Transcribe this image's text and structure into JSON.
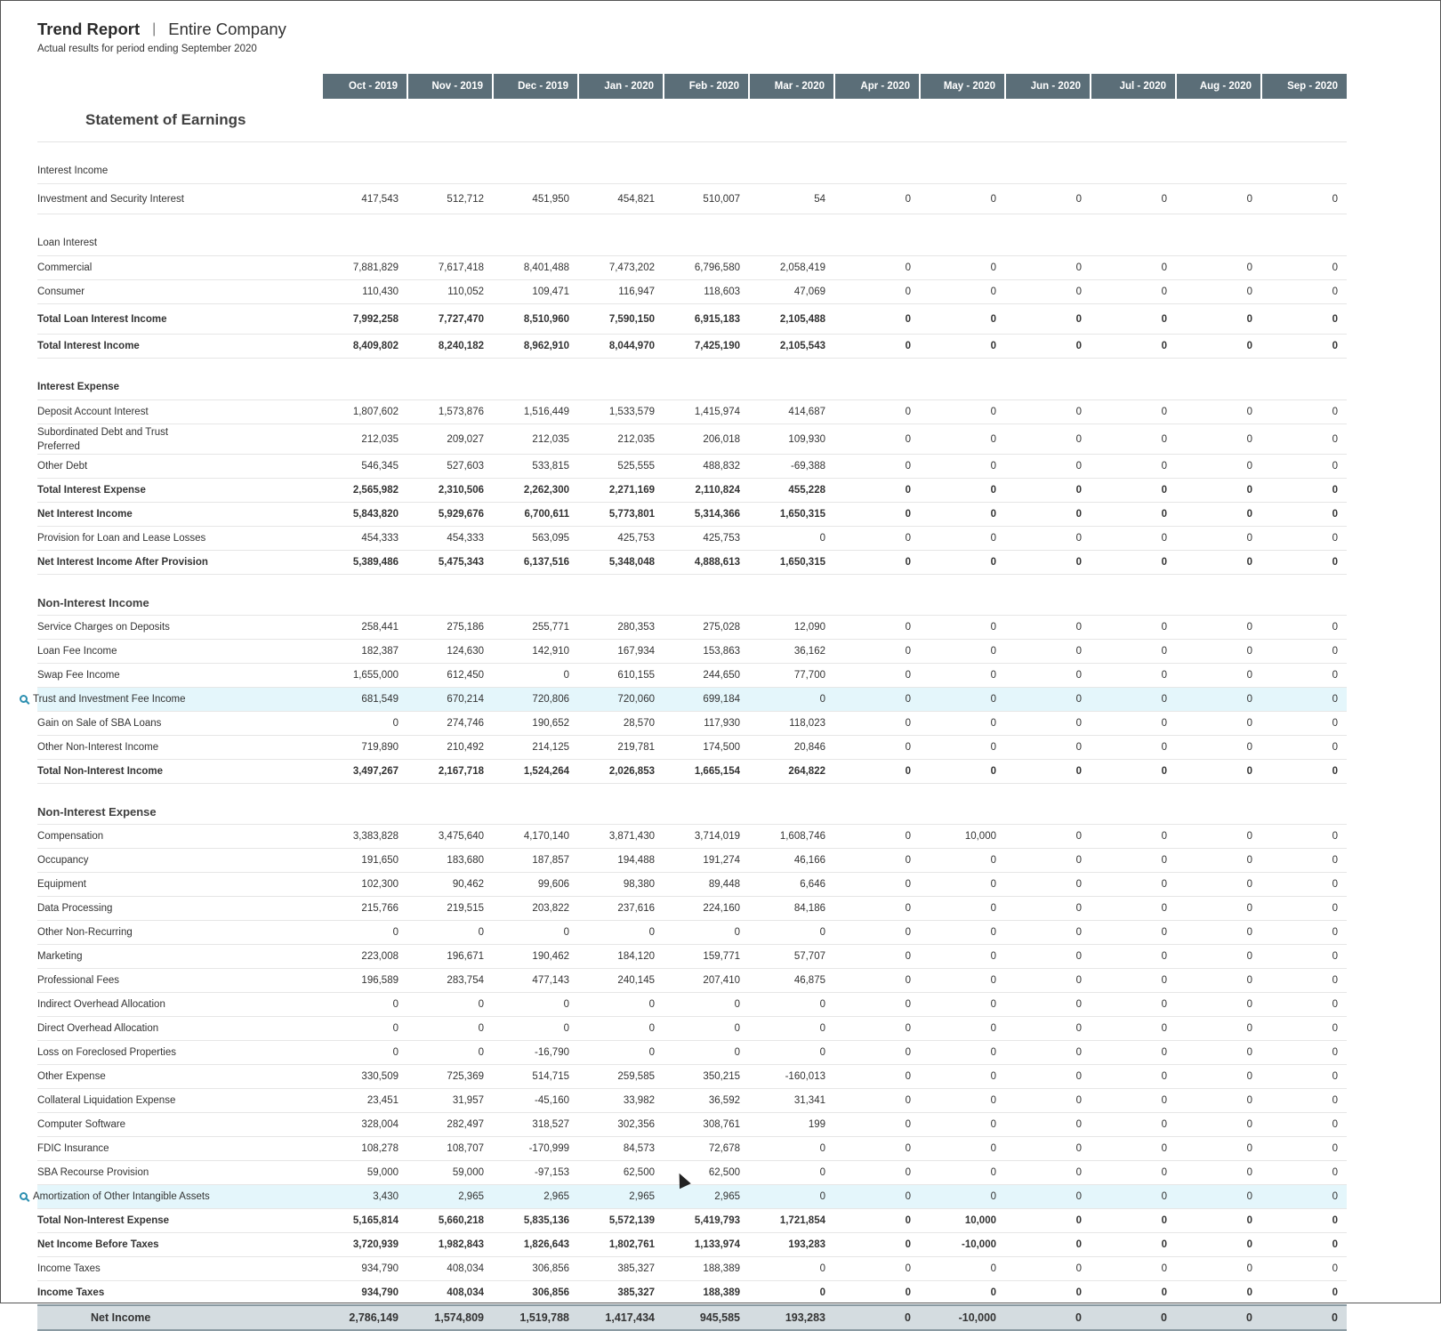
{
  "header": {
    "title": "Trend Report",
    "separator": "|",
    "entity": "Entire Company",
    "subtitle": "Actual results for period ending September 2020"
  },
  "columns": [
    "Oct - 2019",
    "Nov - 2019",
    "Dec - 2019",
    "Jan - 2020",
    "Feb - 2020",
    "Mar - 2020",
    "Apr - 2020",
    "May - 2020",
    "Jun - 2020",
    "Jul - 2020",
    "Aug - 2020",
    "Sep - 2020"
  ],
  "section_title": "Statement of Earnings",
  "rows": [
    {
      "label": "Interest Income",
      "indent": 4,
      "style": "gap",
      "values": []
    },
    {
      "label": "Investment and Security Interest",
      "indent": 5,
      "style": "tall",
      "values": [
        "417,543",
        "512,712",
        "451,950",
        "454,821",
        "510,007",
        "54",
        "0",
        "0",
        "0",
        "0",
        "0",
        "0"
      ]
    },
    {
      "label": "Loan Interest",
      "indent": 5,
      "style": "gap",
      "values": []
    },
    {
      "label": "Commercial",
      "indent": 6,
      "values": [
        "7,881,829",
        "7,617,418",
        "8,401,488",
        "7,473,202",
        "6,796,580",
        "2,058,419",
        "0",
        "0",
        "0",
        "0",
        "0",
        "0"
      ]
    },
    {
      "label": "Consumer",
      "indent": 6,
      "values": [
        "110,430",
        "110,052",
        "109,471",
        "116,947",
        "118,603",
        "47,069",
        "0",
        "0",
        "0",
        "0",
        "0",
        "0"
      ]
    },
    {
      "label": "Total Loan Interest Income",
      "indent": 6,
      "style": "tall bold",
      "values": [
        "7,992,258",
        "7,727,470",
        "8,510,960",
        "7,590,150",
        "6,915,183",
        "2,105,488",
        "0",
        "0",
        "0",
        "0",
        "0",
        "0"
      ]
    },
    {
      "label": "Total Interest Income",
      "indent": 5,
      "style": "bold",
      "values": [
        "8,409,802",
        "8,240,182",
        "8,962,910",
        "8,044,970",
        "7,425,190",
        "2,105,543",
        "0",
        "0",
        "0",
        "0",
        "0",
        "0"
      ]
    },
    {
      "label": "Interest Expense",
      "indent": 4,
      "style": "gap bold",
      "values": []
    },
    {
      "label": "Deposit Account Interest",
      "indent": 5,
      "values": [
        "1,807,602",
        "1,573,876",
        "1,516,449",
        "1,533,579",
        "1,415,974",
        "414,687",
        "0",
        "0",
        "0",
        "0",
        "0",
        "0"
      ]
    },
    {
      "label": "Subordinated Debt and Trust Preferred",
      "indent": 5,
      "style": "tall",
      "values": [
        "212,035",
        "209,027",
        "212,035",
        "212,035",
        "206,018",
        "109,930",
        "0",
        "0",
        "0",
        "0",
        "0",
        "0"
      ]
    },
    {
      "label": "Other Debt",
      "indent": 5,
      "values": [
        "546,345",
        "527,603",
        "533,815",
        "525,555",
        "488,832",
        "-69,388",
        "0",
        "0",
        "0",
        "0",
        "0",
        "0"
      ]
    },
    {
      "label": "Total Interest Expense",
      "indent": 5,
      "style": "bold",
      "values": [
        "2,565,982",
        "2,310,506",
        "2,262,300",
        "2,271,169",
        "2,110,824",
        "455,228",
        "0",
        "0",
        "0",
        "0",
        "0",
        "0"
      ]
    },
    {
      "label": "Net Interest Income",
      "indent": 4,
      "style": "bold",
      "values": [
        "5,843,820",
        "5,929,676",
        "6,700,611",
        "5,773,801",
        "5,314,366",
        "1,650,315",
        "0",
        "0",
        "0",
        "0",
        "0",
        "0"
      ]
    },
    {
      "label": "Provision for Loan and Lease Losses",
      "indent": 3,
      "values": [
        "454,333",
        "454,333",
        "563,095",
        "425,753",
        "425,753",
        "0",
        "0",
        "0",
        "0",
        "0",
        "0",
        "0"
      ]
    },
    {
      "label": "Net Interest Income After Provision",
      "indent": 3,
      "style": "bold",
      "values": [
        "5,389,486",
        "5,475,343",
        "6,137,516",
        "5,348,048",
        "4,888,613",
        "1,650,315",
        "0",
        "0",
        "0",
        "0",
        "0",
        "0"
      ]
    },
    {
      "label": "Non-Interest Income",
      "indent": 2,
      "style": "group",
      "values": []
    },
    {
      "label": "Service Charges on Deposits",
      "indent": 3,
      "values": [
        "258,441",
        "275,186",
        "255,771",
        "280,353",
        "275,028",
        "12,090",
        "0",
        "0",
        "0",
        "0",
        "0",
        "0"
      ]
    },
    {
      "label": "Loan Fee Income",
      "indent": 3,
      "values": [
        "182,387",
        "124,630",
        "142,910",
        "167,934",
        "153,863",
        "36,162",
        "0",
        "0",
        "0",
        "0",
        "0",
        "0"
      ]
    },
    {
      "label": "Swap Fee Income",
      "indent": 3,
      "values": [
        "1,655,000",
        "612,450",
        "0",
        "610,155",
        "244,650",
        "77,700",
        "0",
        "0",
        "0",
        "0",
        "0",
        "0"
      ]
    },
    {
      "label": "Trust and Investment Fee Income",
      "indent": 3,
      "style": "hl",
      "icon": "search-icon",
      "values": [
        "681,549",
        "670,214",
        "720,806",
        "720,060",
        "699,184",
        "0",
        "0",
        "0",
        "0",
        "0",
        "0",
        "0"
      ]
    },
    {
      "label": "Gain on Sale of SBA Loans",
      "indent": 3,
      "values": [
        "0",
        "274,746",
        "190,652",
        "28,570",
        "117,930",
        "118,023",
        "0",
        "0",
        "0",
        "0",
        "0",
        "0"
      ]
    },
    {
      "label": "Other Non-Interest Income",
      "indent": 3,
      "values": [
        "719,890",
        "210,492",
        "214,125",
        "219,781",
        "174,500",
        "20,846",
        "0",
        "0",
        "0",
        "0",
        "0",
        "0"
      ]
    },
    {
      "label": "Total Non-Interest Income",
      "indent": 3,
      "style": "bold",
      "values": [
        "3,497,267",
        "2,167,718",
        "1,524,264",
        "2,026,853",
        "1,665,154",
        "264,822",
        "0",
        "0",
        "0",
        "0",
        "0",
        "0"
      ]
    },
    {
      "label": "Non-Interest Expense",
      "indent": 2,
      "style": "group",
      "values": []
    },
    {
      "label": "Compensation",
      "indent": 3,
      "values": [
        "3,383,828",
        "3,475,640",
        "4,170,140",
        "3,871,430",
        "3,714,019",
        "1,608,746",
        "0",
        "10,000",
        "0",
        "0",
        "0",
        "0"
      ]
    },
    {
      "label": "Occupancy",
      "indent": 3,
      "values": [
        "191,650",
        "183,680",
        "187,857",
        "194,488",
        "191,274",
        "46,166",
        "0",
        "0",
        "0",
        "0",
        "0",
        "0"
      ]
    },
    {
      "label": "Equipment",
      "indent": 3,
      "values": [
        "102,300",
        "90,462",
        "99,606",
        "98,380",
        "89,448",
        "6,646",
        "0",
        "0",
        "0",
        "0",
        "0",
        "0"
      ]
    },
    {
      "label": "Data Processing",
      "indent": 3,
      "values": [
        "215,766",
        "219,515",
        "203,822",
        "237,616",
        "224,160",
        "84,186",
        "0",
        "0",
        "0",
        "0",
        "0",
        "0"
      ]
    },
    {
      "label": "Other Non-Recurring",
      "indent": 3,
      "values": [
        "0",
        "0",
        "0",
        "0",
        "0",
        "0",
        "0",
        "0",
        "0",
        "0",
        "0",
        "0"
      ]
    },
    {
      "label": "Marketing",
      "indent": 3,
      "values": [
        "223,008",
        "196,671",
        "190,462",
        "184,120",
        "159,771",
        "57,707",
        "0",
        "0",
        "0",
        "0",
        "0",
        "0"
      ]
    },
    {
      "label": "Professional Fees",
      "indent": 3,
      "values": [
        "196,589",
        "283,754",
        "477,143",
        "240,145",
        "207,410",
        "46,875",
        "0",
        "0",
        "0",
        "0",
        "0",
        "0"
      ]
    },
    {
      "label": "Indirect Overhead Allocation",
      "indent": 3,
      "values": [
        "0",
        "0",
        "0",
        "0",
        "0",
        "0",
        "0",
        "0",
        "0",
        "0",
        "0",
        "0"
      ]
    },
    {
      "label": "Direct Overhead Allocation",
      "indent": 3,
      "values": [
        "0",
        "0",
        "0",
        "0",
        "0",
        "0",
        "0",
        "0",
        "0",
        "0",
        "0",
        "0"
      ]
    },
    {
      "label": "Loss on Foreclosed Properties",
      "indent": 3,
      "values": [
        "0",
        "0",
        "-16,790",
        "0",
        "0",
        "0",
        "0",
        "0",
        "0",
        "0",
        "0",
        "0"
      ]
    },
    {
      "label": "Other Expense",
      "indent": 3,
      "values": [
        "330,509",
        "725,369",
        "514,715",
        "259,585",
        "350,215",
        "-160,013",
        "0",
        "0",
        "0",
        "0",
        "0",
        "0"
      ]
    },
    {
      "label": "Collateral Liquidation Expense",
      "indent": 3,
      "values": [
        "23,451",
        "31,957",
        "-45,160",
        "33,982",
        "36,592",
        "31,341",
        "0",
        "0",
        "0",
        "0",
        "0",
        "0"
      ]
    },
    {
      "label": "Computer Software",
      "indent": 3,
      "values": [
        "328,004",
        "282,497",
        "318,527",
        "302,356",
        "308,761",
        "199",
        "0",
        "0",
        "0",
        "0",
        "0",
        "0"
      ]
    },
    {
      "label": "FDIC Insurance",
      "indent": 3,
      "values": [
        "108,278",
        "108,707",
        "-170,999",
        "84,573",
        "72,678",
        "0",
        "0",
        "0",
        "0",
        "0",
        "0",
        "0"
      ]
    },
    {
      "label": "SBA Recourse Provision",
      "indent": 3,
      "values": [
        "59,000",
        "59,000",
        "-97,153",
        "62,500",
        "62,500",
        "0",
        "0",
        "0",
        "0",
        "0",
        "0",
        "0"
      ]
    },
    {
      "label": "Amortization of Other Intangible Assets",
      "indent": 3,
      "style": "hl",
      "icon": "search-icon",
      "values": [
        "3,430",
        "2,965",
        "2,965",
        "2,965",
        "2,965",
        "0",
        "0",
        "0",
        "0",
        "0",
        "0",
        "0"
      ]
    },
    {
      "label": "Total Non-Interest Expense",
      "indent": 3,
      "style": "bold",
      "values": [
        "5,165,814",
        "5,660,218",
        "5,835,136",
        "5,572,139",
        "5,419,793",
        "1,721,854",
        "0",
        "10,000",
        "0",
        "0",
        "0",
        "0"
      ]
    },
    {
      "label": "Net Income Before Taxes",
      "indent": 2,
      "style": "bold",
      "values": [
        "3,720,939",
        "1,982,843",
        "1,826,643",
        "1,802,761",
        "1,133,974",
        "193,283",
        "0",
        "-10,000",
        "0",
        "0",
        "0",
        "0"
      ]
    },
    {
      "label": "Income Taxes",
      "indent": 2,
      "values": [
        "934,790",
        "408,034",
        "306,856",
        "385,327",
        "188,389",
        "0",
        "0",
        "0",
        "0",
        "0",
        "0",
        "0"
      ]
    },
    {
      "label": "Income Taxes",
      "indent": 2,
      "style": "bold",
      "values": [
        "934,790",
        "408,034",
        "306,856",
        "385,327",
        "188,389",
        "0",
        "0",
        "0",
        "0",
        "0",
        "0",
        "0"
      ]
    },
    {
      "label": "Net Income",
      "indent": 1,
      "style": "net",
      "values": [
        "2,786,149",
        "1,574,809",
        "1,519,788",
        "1,417,434",
        "945,585",
        "193,283",
        "0",
        "-10,000",
        "0",
        "0",
        "0",
        "0"
      ]
    }
  ]
}
